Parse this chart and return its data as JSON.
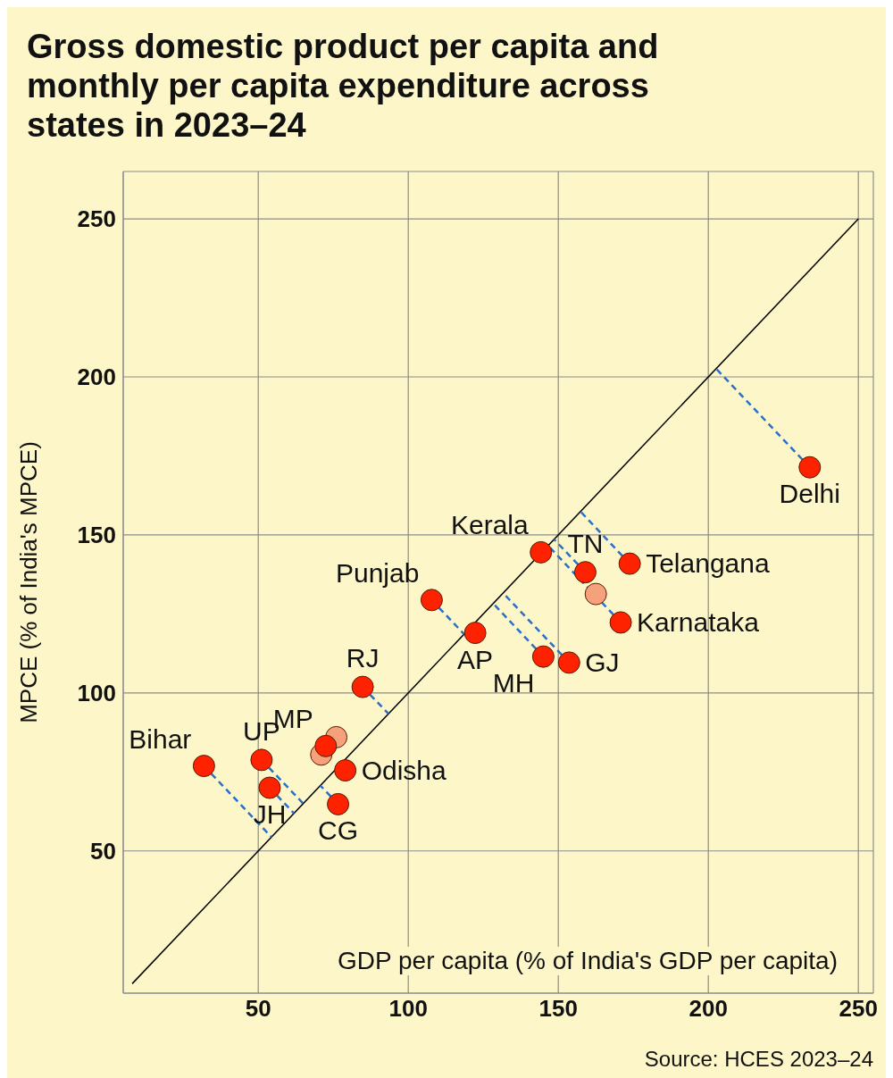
{
  "chart_data": {
    "type": "scatter",
    "title": "Gross domestic product per capita and monthly per capita expenditure across states in 2023–24",
    "xlabel": "GDP per capita (% of India's GDP per capita)",
    "ylabel": "MPCE (% of India's MPCE)",
    "annotations": [
      "Source: HCES 2023–24"
    ],
    "xlim": [
      5,
      255
    ],
    "ylim": [
      5,
      265
    ],
    "xticks": [
      50,
      100,
      150,
      200,
      250
    ],
    "yticks": [
      50,
      100,
      150,
      200,
      250
    ],
    "grid": true,
    "marker": "circle",
    "series": [
      {
        "type": "line",
        "color": "#000000",
        "marker": "none",
        "x": [
          8,
          250
        ],
        "values": [
          8,
          250
        ]
      },
      {
        "type": "line",
        "color": "#2a6fc9",
        "line_style": "dashed",
        "marker": "none",
        "x": [
          31.9,
          54.4,
          null,
          51.1,
          65,
          null,
          53.8,
          61.9,
          null,
          76.6,
          70.7,
          null,
          84.8,
          93.4,
          null,
          107.8,
          118.6,
          null,
          159,
          148.6,
          null,
          173.8,
          157.4,
          null,
          170.8,
          146.6,
          null,
          145,
          128.3,
          null,
          153.6,
          131.6,
          null,
          233.8,
          202.6
        ],
        "values": [
          76.9,
          54.4,
          null,
          78.8,
          65,
          null,
          70,
          61.9,
          null,
          64.8,
          70.7,
          null,
          101.9,
          93.4,
          null,
          129.4,
          118.6,
          null,
          138.2,
          148.6,
          null,
          140.9,
          157.4,
          null,
          122.3,
          146.6,
          null,
          111.5,
          128.3,
          null,
          109.6,
          131.6,
          null,
          171.4,
          202.6
        ]
      },
      {
        "type": "scatter",
        "color": "#f5a27c",
        "x": [
          76,
          71,
          162.5
        ],
        "values": [
          86,
          80.5,
          131.3
        ]
      },
      {
        "name": "Bihar",
        "color": "#ff2200",
        "x": [
          31.9
        ],
        "values": [
          76.9
        ]
      },
      {
        "name": "UP",
        "color": "#ff2200",
        "x": [
          51.1
        ],
        "values": [
          78.8
        ]
      },
      {
        "name": "JH",
        "color": "#ff2200",
        "x": [
          53.8
        ],
        "values": [
          70
        ]
      },
      {
        "name": "MP",
        "color": "#ff2200",
        "x": [
          72.5
        ],
        "values": [
          83.2
        ]
      },
      {
        "name": "Odisha",
        "color": "#ff2200",
        "x": [
          79
        ],
        "values": [
          75.5
        ]
      },
      {
        "name": "CG",
        "color": "#ff2200",
        "x": [
          76.6
        ],
        "values": [
          64.8
        ]
      },
      {
        "name": "RJ",
        "color": "#ff2200",
        "x": [
          84.8
        ],
        "values": [
          101.9
        ]
      },
      {
        "name": "Punjab",
        "color": "#ff2200",
        "x": [
          107.8
        ],
        "values": [
          129.4
        ]
      },
      {
        "name": "AP",
        "color": "#ff2200",
        "x": [
          122.3
        ],
        "values": [
          119
        ]
      },
      {
        "name": "Kerala",
        "color": "#ff2200",
        "x": [
          144.2
        ],
        "values": [
          144.5
        ]
      },
      {
        "name": "TN",
        "color": "#ff2200",
        "x": [
          159
        ],
        "values": [
          138.2
        ]
      },
      {
        "name": "Telangana",
        "color": "#ff2200",
        "x": [
          173.8
        ],
        "values": [
          140.9
        ]
      },
      {
        "name": "Karnataka",
        "color": "#ff2200",
        "x": [
          170.8
        ],
        "values": [
          122.3
        ]
      },
      {
        "name": "MH",
        "color": "#ff2200",
        "x": [
          145
        ],
        "values": [
          111.5
        ]
      },
      {
        "name": "GJ",
        "color": "#ff2200",
        "x": [
          153.6
        ],
        "values": [
          109.6
        ]
      },
      {
        "name": "Delhi",
        "color": "#ff2200",
        "x": [
          233.8
        ],
        "values": [
          171.4
        ]
      }
    ]
  }
}
